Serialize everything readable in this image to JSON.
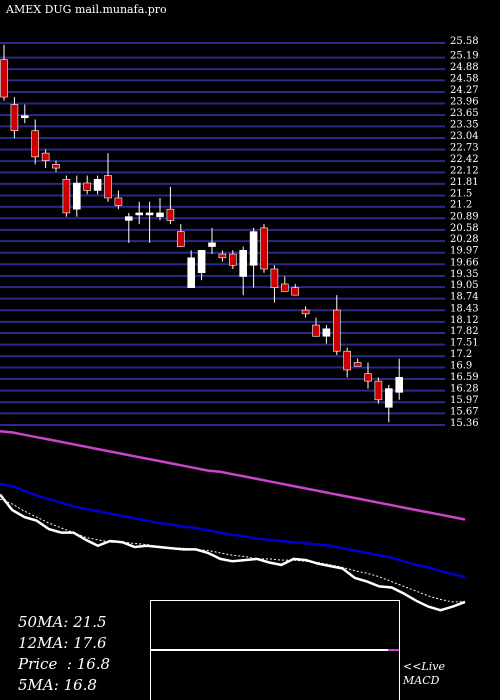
{
  "title": "AMEX  DUG mail.munafa.pro",
  "colors": {
    "background": "#000000",
    "grid": "#2a2a8a",
    "up": "#ffffff",
    "down": "#cc0000",
    "ma_long": "#cc44cc",
    "ma_mid": "#0000cc",
    "ma_short": "#ffffff"
  },
  "chart_data": {
    "type": "candlestick",
    "y_ticks": [
      25.58,
      25.19,
      24.88,
      24.58,
      24.27,
      23.96,
      23.65,
      23.35,
      23.04,
      22.73,
      22.42,
      22.12,
      21.81,
      21.5,
      21.2,
      20.89,
      20.58,
      20.28,
      19.97,
      19.66,
      19.35,
      19.05,
      18.74,
      18.43,
      18.12,
      17.82,
      17.51,
      17.2,
      16.9,
      16.59,
      16.28,
      15.97,
      15.67,
      15.36
    ],
    "y_tick_labels": [
      "25.58",
      "25.19",
      "24.88",
      "24.58",
      "24.27",
      "23.96",
      "23.65",
      "23.35",
      "23.04",
      "22.73",
      "22.42",
      "22.12",
      "21.81",
      "21.5",
      "21.2",
      "20.89",
      "20.58",
      "20.28",
      "19.97",
      "19.66",
      "19.35",
      "19.05",
      "18.74",
      "18.43",
      "18.12",
      "17.82",
      "17.51",
      "17.2",
      "16.9",
      "16.59",
      "16.28",
      "15.97",
      "15.67",
      "15.36"
    ],
    "candles": [
      {
        "o": 25.0,
        "h": 25.4,
        "l": 23.9,
        "c": 24.0
      },
      {
        "o": 23.8,
        "h": 24.0,
        "l": 22.9,
        "c": 23.1
      },
      {
        "o": 23.5,
        "h": 23.8,
        "l": 23.3,
        "c": 23.5
      },
      {
        "o": 23.1,
        "h": 23.4,
        "l": 22.2,
        "c": 22.4
      },
      {
        "o": 22.5,
        "h": 22.6,
        "l": 22.1,
        "c": 22.3
      },
      {
        "o": 22.2,
        "h": 22.3,
        "l": 22.0,
        "c": 22.1
      },
      {
        "o": 21.8,
        "h": 21.9,
        "l": 20.8,
        "c": 20.9
      },
      {
        "o": 21.0,
        "h": 21.9,
        "l": 20.8,
        "c": 21.7
      },
      {
        "o": 21.7,
        "h": 21.9,
        "l": 21.4,
        "c": 21.5
      },
      {
        "o": 21.5,
        "h": 21.9,
        "l": 21.4,
        "c": 21.8
      },
      {
        "o": 21.9,
        "h": 22.5,
        "l": 21.2,
        "c": 21.3
      },
      {
        "o": 21.3,
        "h": 21.5,
        "l": 21.0,
        "c": 21.1
      },
      {
        "o": 20.7,
        "h": 20.9,
        "l": 20.1,
        "c": 20.8
      },
      {
        "o": 20.9,
        "h": 21.2,
        "l": 20.6,
        "c": 20.9
      },
      {
        "o": 20.9,
        "h": 21.2,
        "l": 20.1,
        "c": 20.9
      },
      {
        "o": 20.8,
        "h": 21.3,
        "l": 20.7,
        "c": 20.9
      },
      {
        "o": 21.0,
        "h": 21.6,
        "l": 20.6,
        "c": 20.7
      },
      {
        "o": 20.4,
        "h": 20.6,
        "l": 20.0,
        "c": 20.0
      },
      {
        "o": 18.9,
        "h": 19.9,
        "l": 18.9,
        "c": 19.7
      },
      {
        "o": 19.3,
        "h": 19.9,
        "l": 19.1,
        "c": 19.9
      },
      {
        "o": 20.0,
        "h": 20.5,
        "l": 19.8,
        "c": 20.1
      },
      {
        "o": 19.8,
        "h": 19.9,
        "l": 19.6,
        "c": 19.7
      },
      {
        "o": 19.8,
        "h": 19.9,
        "l": 19.4,
        "c": 19.5
      },
      {
        "o": 19.2,
        "h": 20.0,
        "l": 18.7,
        "c": 19.9
      },
      {
        "o": 19.5,
        "h": 20.5,
        "l": 18.9,
        "c": 20.4
      },
      {
        "o": 20.5,
        "h": 20.6,
        "l": 19.3,
        "c": 19.4
      },
      {
        "o": 19.4,
        "h": 19.5,
        "l": 18.5,
        "c": 18.9
      },
      {
        "o": 19.0,
        "h": 19.2,
        "l": 18.8,
        "c": 18.8
      },
      {
        "o": 18.9,
        "h": 19.0,
        "l": 18.7,
        "c": 18.7
      },
      {
        "o": 18.3,
        "h": 18.4,
        "l": 18.1,
        "c": 18.2
      },
      {
        "o": 17.9,
        "h": 18.1,
        "l": 17.6,
        "c": 17.6
      },
      {
        "o": 17.6,
        "h": 17.9,
        "l": 17.4,
        "c": 17.8
      },
      {
        "o": 18.3,
        "h": 18.7,
        "l": 17.1,
        "c": 17.2
      },
      {
        "o": 17.2,
        "h": 17.3,
        "l": 16.5,
        "c": 16.7
      },
      {
        "o": 16.9,
        "h": 17.0,
        "l": 16.8,
        "c": 16.8
      },
      {
        "o": 16.6,
        "h": 16.9,
        "l": 16.2,
        "c": 16.4
      },
      {
        "o": 16.4,
        "h": 16.5,
        "l": 15.8,
        "c": 15.9
      },
      {
        "o": 15.7,
        "h": 16.3,
        "l": 15.3,
        "c": 16.2
      },
      {
        "o": 16.1,
        "h": 17.0,
        "l": 15.9,
        "c": 16.5
      }
    ],
    "ma_long": [
      30.9,
      30.8,
      30.6,
      30.4,
      30.2,
      30.0,
      29.8,
      29.6,
      29.4,
      29.2,
      29.0,
      28.8,
      28.6,
      28.4,
      28.2,
      28.0,
      27.8,
      27.6,
      27.5,
      27.3,
      27.1,
      26.9,
      26.7,
      26.5,
      26.3,
      26.1,
      25.9,
      25.7,
      25.5,
      25.3,
      25.1,
      24.9,
      24.7,
      24.5,
      24.3,
      24.1,
      23.9,
      23.7,
      23.5
    ],
    "ma_mid": [
      26.5,
      26.3,
      25.9,
      25.5,
      25.2,
      24.9,
      24.6,
      24.4,
      24.2,
      24.0,
      23.8,
      23.6,
      23.4,
      23.2,
      23.1,
      22.9,
      22.8,
      22.6,
      22.4,
      22.2,
      22.1,
      21.9,
      21.8,
      21.7,
      21.6,
      21.5,
      21.4,
      21.3,
      21.1,
      20.9,
      20.7,
      20.5,
      20.3,
      20.0,
      19.7,
      19.5,
      19.2,
      18.9,
      18.7
    ],
    "ma_short": [
      25.2,
      24.8,
      24.2,
      23.7,
      23.2,
      22.8,
      22.4,
      22.0,
      21.8,
      21.6,
      21.6,
      21.5,
      21.4,
      21.2,
      21.1,
      21.1,
      21.0,
      20.9,
      20.7,
      20.5,
      20.4,
      20.2,
      20.2,
      20.1,
      20.1,
      20.0,
      19.9,
      19.7,
      19.5,
      19.2,
      19.0,
      18.7,
      18.3,
      17.9,
      17.5,
      17.1,
      16.8,
      16.6,
      16.6
    ],
    "price_line": [
      25.6,
      24.3,
      23.7,
      23.4,
      22.7,
      22.4,
      22.4,
      21.8,
      21.3,
      21.7,
      21.6,
      21.2,
      21.3,
      21.2,
      21.1,
      21.0,
      21.0,
      20.7,
      20.2,
      20.0,
      20.1,
      20.2,
      19.9,
      19.7,
      20.2,
      20.1,
      19.8,
      19.6,
      19.4,
      18.6,
      18.3,
      17.9,
      17.8,
      17.3,
      16.7,
      16.2,
      15.9,
      16.2,
      16.6
    ],
    "macd_line": [
      0.0,
      0.0,
      0.0,
      0.0,
      0.0,
      0.0,
      0.0,
      0.0,
      0.0,
      0.0,
      0.0,
      0.0,
      0.0,
      0.0,
      0.0,
      0.0,
      0.0,
      0.0,
      0.0,
      0.0,
      0.0,
      0.0,
      0.0,
      0.0,
      0.0,
      0.0,
      0.0,
      0.0,
      0.0,
      0.0,
      0.0,
      0.0,
      0.0,
      0.0,
      0.0,
      0.0,
      0.0,
      0.0,
      0.0
    ]
  },
  "stats": [
    {
      "label": "50MA",
      "value": ": 21.5"
    },
    {
      "label": "12MA",
      "value": ": 17.6"
    },
    {
      "label": "Price",
      "value": "  : 16.8"
    },
    {
      "label": "5MA",
      "value": ": 16.8"
    }
  ],
  "macd_label": [
    "<<Live",
    "MACD"
  ]
}
